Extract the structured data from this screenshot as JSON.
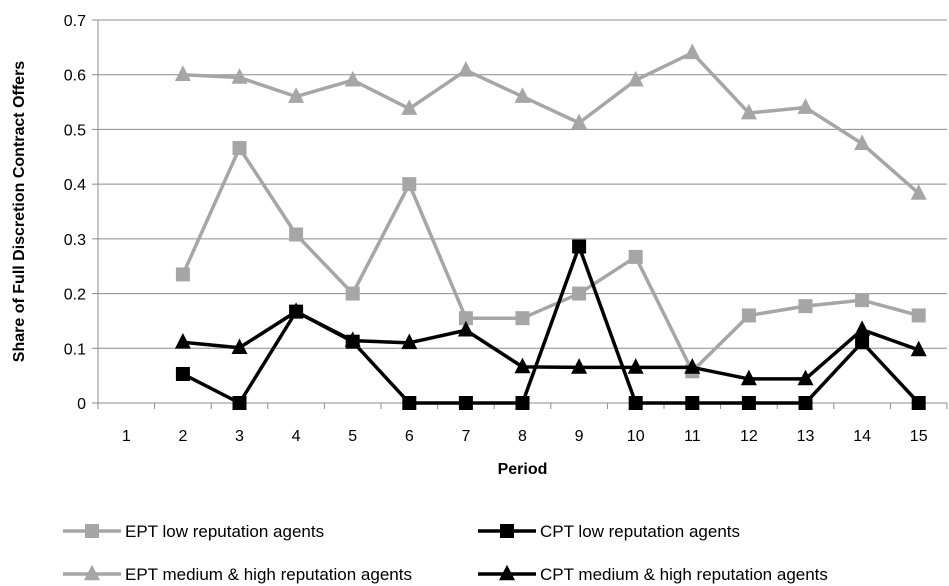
{
  "chart_data": {
    "type": "line",
    "title": "",
    "xlabel": "Period",
    "ylabel": "Share of Full Discretion Contract Offers",
    "x": [
      1,
      2,
      3,
      4,
      5,
      6,
      7,
      8,
      9,
      10,
      11,
      12,
      13,
      14,
      15
    ],
    "x_tick_labels": [
      "1",
      "2",
      "3",
      "4",
      "5",
      "6",
      "7",
      "8",
      "9",
      "10",
      "11",
      "12",
      "13",
      "14",
      "15"
    ],
    "ylim": [
      0,
      0.7
    ],
    "y_ticks": [
      0,
      0.1,
      0.2,
      0.3,
      0.4,
      0.5,
      0.6,
      0.7
    ],
    "y_tick_labels": [
      "0",
      "0.1",
      "0.2",
      "0.3",
      "0.4",
      "0.5",
      "0.6",
      "0.7"
    ],
    "grid": "horizontal",
    "legend_position": "bottom",
    "series": [
      {
        "name": "EPT low reputation agents",
        "color": "#a6a6a6",
        "marker": "square",
        "values": [
          null,
          0.235,
          0.466,
          0.308,
          0.2,
          0.4,
          0.155,
          0.155,
          0.2,
          0.267,
          0.058,
          0.16,
          0.177,
          0.188,
          0.16
        ]
      },
      {
        "name": "CPT low reputation agents",
        "color": "#000000",
        "marker": "square",
        "values": [
          null,
          0.053,
          0,
          0.167,
          0.112,
          0,
          0,
          0,
          0.286,
          0,
          0,
          0,
          0,
          0.111,
          0
        ]
      },
      {
        "name": "EPT medium & high reputation agents",
        "color": "#a6a6a6",
        "marker": "triangle",
        "values": [
          null,
          0.6,
          0.595,
          0.56,
          0.59,
          0.538,
          0.608,
          0.56,
          0.512,
          0.59,
          0.64,
          0.53,
          0.54,
          0.474,
          0.383
        ]
      },
      {
        "name": "CPT medium & high reputation agents",
        "color": "#000000",
        "marker": "triangle",
        "values": [
          null,
          0.111,
          0.101,
          0.167,
          0.114,
          0.11,
          0.133,
          0.066,
          0.065,
          0.065,
          0.065,
          0.044,
          0.044,
          0.134,
          0.097
        ]
      }
    ]
  }
}
